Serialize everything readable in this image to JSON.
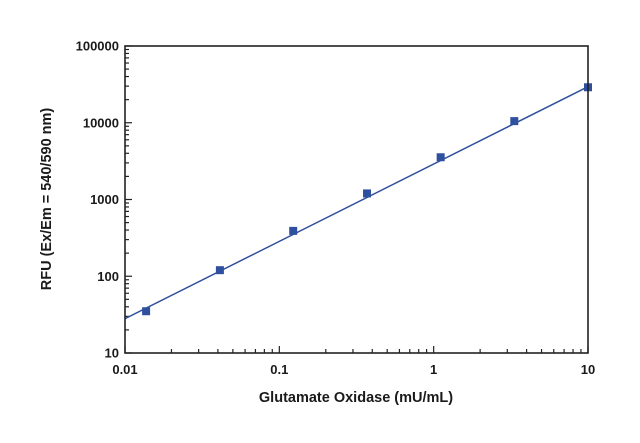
{
  "chart_data": {
    "type": "scatter",
    "xlabel": "Glutamate Oxidase (mU/mL)",
    "ylabel": "RFU (Ex/Em = 540/590 nm)",
    "x_scale": "log",
    "y_scale": "log",
    "xlim": [
      0.01,
      10
    ],
    "ylim": [
      10,
      100000
    ],
    "x_ticks": [
      "0.01",
      "0.1",
      "1",
      "10"
    ],
    "y_ticks": [
      "10",
      "100",
      "1000",
      "10000",
      "100000"
    ],
    "grid": false,
    "series": [
      {
        "marker": "square",
        "color": "#2f4f9f",
        "x": [
          0.0137,
          0.0412,
          0.123,
          0.37,
          1.11,
          3.33,
          10
        ],
        "y": [
          35,
          120,
          390,
          1200,
          3550,
          10500,
          29000
        ]
      }
    ],
    "fit_line": {
      "color": "#2f4f9f",
      "x": [
        0.01,
        10
      ],
      "y": [
        28,
        29500
      ]
    }
  }
}
